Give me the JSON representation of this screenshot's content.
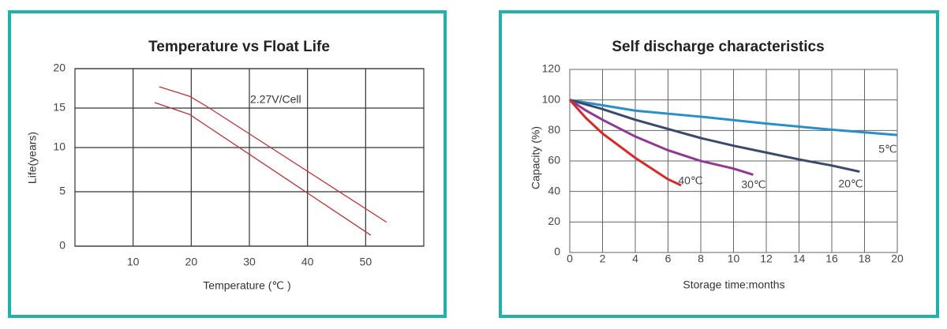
{
  "chart_data": [
    {
      "type": "line",
      "title": "Temperature vs Float Life",
      "xlabel": "Temperature (℃ )",
      "ylabel": "Life(years)",
      "annotation": "2.27V/Cell",
      "xlim": [
        0,
        60
      ],
      "xticks": [
        10,
        20,
        30,
        40,
        50
      ],
      "ylim": [
        0,
        20
      ],
      "yticks": [
        0,
        5,
        10,
        15,
        20
      ],
      "grid": true,
      "series": [
        {
          "color": "#b5343a",
          "x": [
            14.5,
            19.7,
            22.7,
            53.6
          ],
          "values": [
            17.7,
            16.5,
            15.2,
            2.2
          ]
        },
        {
          "color": "#b5343a",
          "x": [
            13.7,
            19.7,
            50.9
          ],
          "values": [
            15.7,
            14.2,
            1.0
          ]
        }
      ]
    },
    {
      "type": "line",
      "title": "Self discharge characteristics",
      "xlabel": "Storage time:months",
      "ylabel": "Capacity (%)",
      "xlim": [
        0,
        20
      ],
      "xticks": [
        0,
        2,
        4,
        6,
        8,
        10,
        12,
        14,
        16,
        18,
        20
      ],
      "ylim": [
        0,
        120
      ],
      "yticks": [
        0,
        20,
        40,
        60,
        80,
        100,
        120
      ],
      "grid": true,
      "series": [
        {
          "name": "5℃",
          "color": "#2a8fc9",
          "x": [
            0,
            4,
            8,
            12,
            16,
            20
          ],
          "values": [
            100,
            93,
            89,
            84.5,
            80.5,
            77
          ]
        },
        {
          "name": "20℃",
          "color": "#3b4a6b",
          "x": [
            0,
            2,
            4,
            6,
            8,
            10,
            12,
            14,
            16,
            17.7
          ],
          "values": [
            100,
            94,
            87,
            81,
            75,
            70,
            65.5,
            61,
            57,
            53
          ]
        },
        {
          "name": "30℃",
          "color": "#8e3a90",
          "x": [
            0,
            1,
            2,
            4,
            6,
            8,
            10,
            11.2
          ],
          "values": [
            100,
            93,
            87,
            76,
            67,
            60,
            55,
            51
          ]
        },
        {
          "name": "40℃",
          "color": "#d62a2a",
          "x": [
            0,
            1,
            2,
            4,
            5,
            6,
            6.8
          ],
          "values": [
            100,
            88,
            78,
            62,
            55,
            48,
            44
          ]
        }
      ]
    }
  ]
}
